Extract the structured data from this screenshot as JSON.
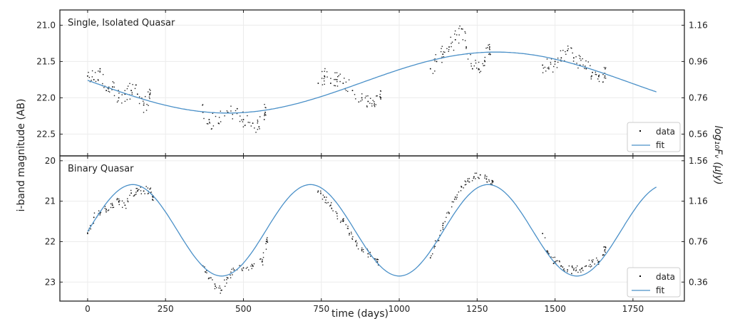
{
  "chart_data": [
    {
      "type": "scatter",
      "title": "Single, Isolated Quasar",
      "xlim": [
        -89,
        1915
      ],
      "ylim": [
        22.8,
        20.79
      ],
      "y_inverted": true,
      "grid": true,
      "legend": {
        "position": "bottom-right",
        "entries": [
          "data",
          "fit"
        ]
      },
      "yticks": [
        "21.0",
        "21.5",
        "22.0",
        "22.5"
      ],
      "ytick_values": [
        21.0,
        21.5,
        22.0,
        22.5
      ],
      "right_yticks": [
        "1.16",
        "0.96",
        "0.76",
        "0.56"
      ],
      "series": [
        {
          "name": "data",
          "type": "scatter",
          "color": "#000000",
          "points": [
            [
              0,
              21.7
            ],
            [
              20,
              21.75
            ],
            [
              40,
              21.6
            ],
            [
              60,
              21.9
            ],
            [
              80,
              21.85
            ],
            [
              100,
              22.0
            ],
            [
              120,
              21.95
            ],
            [
              140,
              21.9
            ],
            [
              160,
              21.95
            ],
            [
              180,
              22.1
            ],
            [
              200,
              21.95
            ],
            [
              370,
              22.2
            ],
            [
              390,
              22.3
            ],
            [
              420,
              22.35
            ],
            [
              450,
              22.2
            ],
            [
              480,
              22.15
            ],
            [
              500,
              22.3
            ],
            [
              530,
              22.35
            ],
            [
              550,
              22.4
            ],
            [
              570,
              22.2
            ],
            [
              740,
              21.8
            ],
            [
              760,
              21.7
            ],
            [
              780,
              21.8
            ],
            [
              800,
              21.75
            ],
            [
              820,
              21.8
            ],
            [
              850,
              21.9
            ],
            [
              880,
              22.0
            ],
            [
              900,
              22.05
            ],
            [
              920,
              22.1
            ],
            [
              940,
              22.0
            ],
            [
              1100,
              21.6
            ],
            [
              1120,
              21.5
            ],
            [
              1140,
              21.4
            ],
            [
              1160,
              21.3
            ],
            [
              1180,
              21.2
            ],
            [
              1200,
              21.05
            ],
            [
              1215,
              21.3
            ],
            [
              1235,
              21.6
            ],
            [
              1255,
              21.6
            ],
            [
              1275,
              21.5
            ],
            [
              1290,
              21.3
            ],
            [
              1460,
              21.55
            ],
            [
              1480,
              21.6
            ],
            [
              1500,
              21.5
            ],
            [
              1520,
              21.45
            ],
            [
              1540,
              21.35
            ],
            [
              1560,
              21.45
            ],
            [
              1580,
              21.55
            ],
            [
              1600,
              21.6
            ],
            [
              1620,
              21.65
            ],
            [
              1640,
              21.7
            ],
            [
              1660,
              21.7
            ]
          ]
        },
        {
          "name": "fit",
          "type": "line",
          "color": "#4a90c8",
          "model": {
            "mean": 21.79,
            "amplitude": 0.42,
            "period": 1720,
            "faintest_at": 450,
            "t_range": [
              0,
              1825
            ]
          }
        }
      ]
    },
    {
      "type": "scatter",
      "title": "Binary Quasar",
      "xlim": [
        -89,
        1915
      ],
      "ylim": [
        23.47,
        19.88
      ],
      "y_inverted": true,
      "grid": true,
      "xlabel": "time (days)",
      "xticks": [
        "0",
        "250",
        "500",
        "750",
        "1000",
        "1250",
        "1500",
        "1750"
      ],
      "xtick_values": [
        0,
        250,
        500,
        750,
        1000,
        1250,
        1500,
        1750
      ],
      "legend": {
        "position": "bottom-right",
        "entries": [
          "data",
          "fit"
        ]
      },
      "yticks": [
        "20",
        "21",
        "22",
        "23"
      ],
      "ytick_values": [
        20,
        21,
        22,
        23
      ],
      "right_yticks": [
        "1.56",
        "1.16",
        "0.76",
        "0.36"
      ],
      "series": [
        {
          "name": "data",
          "type": "scatter",
          "color": "#000000",
          "points": [
            [
              0,
              21.8
            ],
            [
              20,
              21.4
            ],
            [
              40,
              21.3
            ],
            [
              60,
              21.2
            ],
            [
              80,
              21.1
            ],
            [
              100,
              21.0
            ],
            [
              120,
              21.1
            ],
            [
              140,
              20.8
            ],
            [
              160,
              20.75
            ],
            [
              180,
              20.75
            ],
            [
              200,
              20.7
            ],
            [
              210,
              20.9
            ],
            [
              370,
              22.6
            ],
            [
              390,
              22.9
            ],
            [
              410,
              23.1
            ],
            [
              430,
              23.2
            ],
            [
              450,
              22.9
            ],
            [
              470,
              22.7
            ],
            [
              500,
              22.65
            ],
            [
              530,
              22.6
            ],
            [
              560,
              22.5
            ],
            [
              575,
              22.0
            ],
            [
              740,
              20.75
            ],
            [
              760,
              20.9
            ],
            [
              780,
              21.1
            ],
            [
              800,
              21.3
            ],
            [
              820,
              21.5
            ],
            [
              840,
              21.8
            ],
            [
              860,
              22.0
            ],
            [
              880,
              22.2
            ],
            [
              900,
              22.3
            ],
            [
              930,
              22.5
            ],
            [
              1100,
              22.4
            ],
            [
              1120,
              22.0
            ],
            [
              1140,
              21.6
            ],
            [
              1160,
              21.3
            ],
            [
              1180,
              20.9
            ],
            [
              1200,
              20.65
            ],
            [
              1220,
              20.5
            ],
            [
              1240,
              20.4
            ],
            [
              1260,
              20.35
            ],
            [
              1280,
              20.45
            ],
            [
              1300,
              20.5
            ],
            [
              1460,
              21.8
            ],
            [
              1480,
              22.3
            ],
            [
              1500,
              22.5
            ],
            [
              1520,
              22.6
            ],
            [
              1540,
              22.7
            ],
            [
              1560,
              22.7
            ],
            [
              1580,
              22.7
            ],
            [
              1600,
              22.6
            ],
            [
              1620,
              22.5
            ],
            [
              1640,
              22.5
            ],
            [
              1660,
              22.2
            ]
          ]
        },
        {
          "name": "fit",
          "type": "line",
          "color": "#4a90c8",
          "model": {
            "mean": 21.72,
            "amplitude": 1.13,
            "period": 570,
            "faintest_at": 430,
            "t_range": [
              0,
              1825
            ]
          }
        }
      ]
    }
  ],
  "axes": {
    "left_ylabel": "i-band magnitude (AB)",
    "right_ylabel": "log₁₀Fᵥ (μJy)",
    "xlabel": "time (days)"
  }
}
